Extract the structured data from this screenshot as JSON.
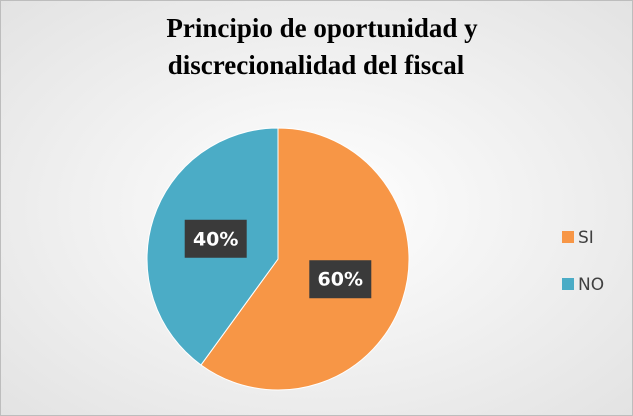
{
  "chart_data": {
    "type": "pie",
    "title": [
      "Principio de oportunidad y",
      "discrecionalidad del fiscal"
    ],
    "categories": [
      "SI",
      "NO"
    ],
    "values": [
      60,
      40
    ],
    "value_labels": [
      "60%",
      "40%"
    ],
    "colors": [
      "#f79646",
      "#4bacc6"
    ],
    "legend": "right"
  }
}
